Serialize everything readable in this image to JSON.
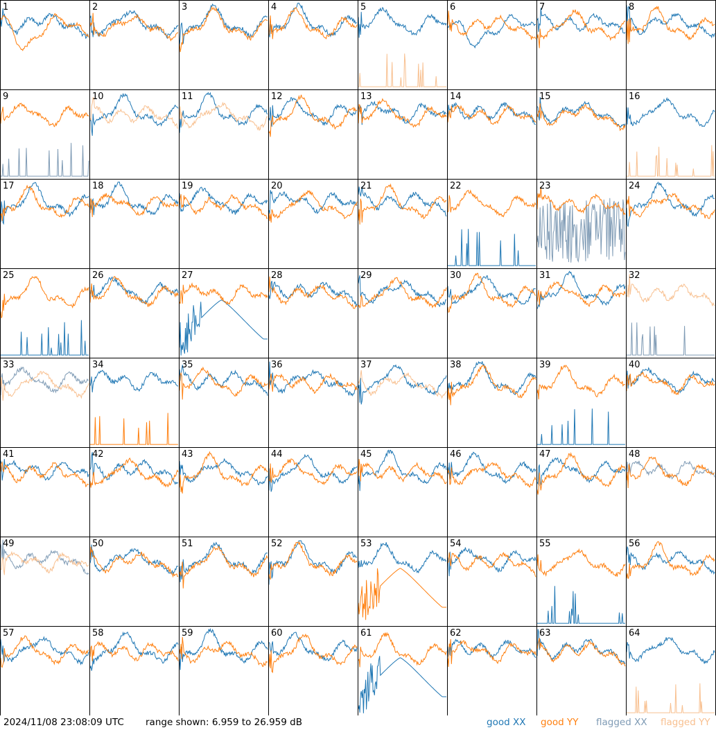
{
  "footer": {
    "timestamp": "2024/11/08 23:08:09 UTC",
    "range_text": "range shown: 6.959 to 26.959 dB"
  },
  "legend": [
    {
      "key": "good_xx",
      "label": "good XX",
      "color": "#1f77b4"
    },
    {
      "key": "good_yy",
      "label": "good YY",
      "color": "#ff7f0e"
    },
    {
      "key": "flagged_xx",
      "label": "flagged XX",
      "color": "#7f9bb5"
    },
    {
      "key": "flagged_yy",
      "label": "flagged YY",
      "color": "#f8c090"
    }
  ],
  "chart_data": {
    "type": "line",
    "layout": "8x8 small multiples",
    "units": "dB",
    "ylim": [
      6.959,
      26.959
    ],
    "panels": [
      {
        "id": 1,
        "xx": "good",
        "yy": "good",
        "note": "YY drops low mid-band"
      },
      {
        "id": 2,
        "xx": "good",
        "yy": "good"
      },
      {
        "id": 3,
        "xx": "good",
        "yy": "good"
      },
      {
        "id": 4,
        "xx": "good",
        "yy": "good"
      },
      {
        "id": 5,
        "xx": "good",
        "yy": "flagged",
        "note": "YY near floor with spikes"
      },
      {
        "id": 6,
        "xx": "good",
        "yy": "good",
        "note": "XX deep dip"
      },
      {
        "id": 7,
        "xx": "good",
        "yy": "good"
      },
      {
        "id": 8,
        "xx": "good",
        "yy": "good"
      },
      {
        "id": 9,
        "xx": "flagged",
        "yy": "good",
        "note": "XX near floor with spikes"
      },
      {
        "id": 10,
        "xx": "good",
        "yy": "flagged"
      },
      {
        "id": 11,
        "xx": "good",
        "yy": "flagged"
      },
      {
        "id": 12,
        "xx": "good",
        "yy": "good"
      },
      {
        "id": 13,
        "xx": "good",
        "yy": "good"
      },
      {
        "id": 14,
        "xx": "good",
        "yy": "good"
      },
      {
        "id": 15,
        "xx": "good",
        "yy": "good"
      },
      {
        "id": 16,
        "xx": "good",
        "yy": "flagged",
        "note": "YY near floor with spikes"
      },
      {
        "id": 17,
        "xx": "good",
        "yy": "good"
      },
      {
        "id": 18,
        "xx": "good",
        "yy": "good"
      },
      {
        "id": 19,
        "xx": "good",
        "yy": "good"
      },
      {
        "id": 20,
        "xx": "good",
        "yy": "good"
      },
      {
        "id": 21,
        "xx": "good",
        "yy": "good"
      },
      {
        "id": 22,
        "xx": "good",
        "yy": "good",
        "note": "XX near floor with spikes"
      },
      {
        "id": 23,
        "xx": "flagged",
        "yy": "good",
        "note": "XX noisy"
      },
      {
        "id": 24,
        "xx": "good",
        "yy": "good"
      },
      {
        "id": 25,
        "xx": "good",
        "yy": "good",
        "note": "XX near floor"
      },
      {
        "id": 26,
        "xx": "good",
        "yy": "good"
      },
      {
        "id": 27,
        "xx": "good",
        "yy": "good",
        "note": "XX low arch"
      },
      {
        "id": 28,
        "xx": "good",
        "yy": "good"
      },
      {
        "id": 29,
        "xx": "good",
        "yy": "good"
      },
      {
        "id": 30,
        "xx": "good",
        "yy": "good"
      },
      {
        "id": 31,
        "xx": "good",
        "yy": "good"
      },
      {
        "id": 32,
        "xx": "flagged",
        "yy": "flagged",
        "note": "XX near floor"
      },
      {
        "id": 33,
        "xx": "flagged",
        "yy": "flagged"
      },
      {
        "id": 34,
        "xx": "good",
        "yy": "good",
        "note": "YY near floor with spikes"
      },
      {
        "id": 35,
        "xx": "good",
        "yy": "good"
      },
      {
        "id": 36,
        "xx": "good",
        "yy": "good"
      },
      {
        "id": 37,
        "xx": "good",
        "yy": "flagged"
      },
      {
        "id": 38,
        "xx": "good",
        "yy": "good"
      },
      {
        "id": 39,
        "xx": "good",
        "yy": "good",
        "note": "XX near floor with spikes"
      },
      {
        "id": 40,
        "xx": "good",
        "yy": "good"
      },
      {
        "id": 41,
        "xx": "good",
        "yy": "good"
      },
      {
        "id": 42,
        "xx": "good",
        "yy": "good"
      },
      {
        "id": 43,
        "xx": "good",
        "yy": "good"
      },
      {
        "id": 44,
        "xx": "good",
        "yy": "good"
      },
      {
        "id": 45,
        "xx": "good",
        "yy": "good"
      },
      {
        "id": 46,
        "xx": "good",
        "yy": "good"
      },
      {
        "id": 47,
        "xx": "good",
        "yy": "good"
      },
      {
        "id": 48,
        "xx": "flagged",
        "yy": "good"
      },
      {
        "id": 49,
        "xx": "flagged",
        "yy": "flagged"
      },
      {
        "id": 50,
        "xx": "good",
        "yy": "good"
      },
      {
        "id": 51,
        "xx": "good",
        "yy": "good"
      },
      {
        "id": 52,
        "xx": "good",
        "yy": "good"
      },
      {
        "id": 53,
        "xx": "good",
        "yy": "good",
        "note": "YY low arch"
      },
      {
        "id": 54,
        "xx": "good",
        "yy": "good"
      },
      {
        "id": 55,
        "xx": "good",
        "yy": "good",
        "note": "XX near floor with spikes"
      },
      {
        "id": 56,
        "xx": "good",
        "yy": "good"
      },
      {
        "id": 57,
        "xx": "good",
        "yy": "good"
      },
      {
        "id": 58,
        "xx": "good",
        "yy": "good"
      },
      {
        "id": 59,
        "xx": "good",
        "yy": "good"
      },
      {
        "id": 60,
        "xx": "good",
        "yy": "good"
      },
      {
        "id": 61,
        "xx": "good",
        "yy": "good",
        "note": "XX low arch"
      },
      {
        "id": 62,
        "xx": "good",
        "yy": "good"
      },
      {
        "id": 63,
        "xx": "good",
        "yy": "good"
      },
      {
        "id": 64,
        "xx": "good",
        "yy": "flagged",
        "note": "YY near floor with spikes"
      }
    ]
  }
}
